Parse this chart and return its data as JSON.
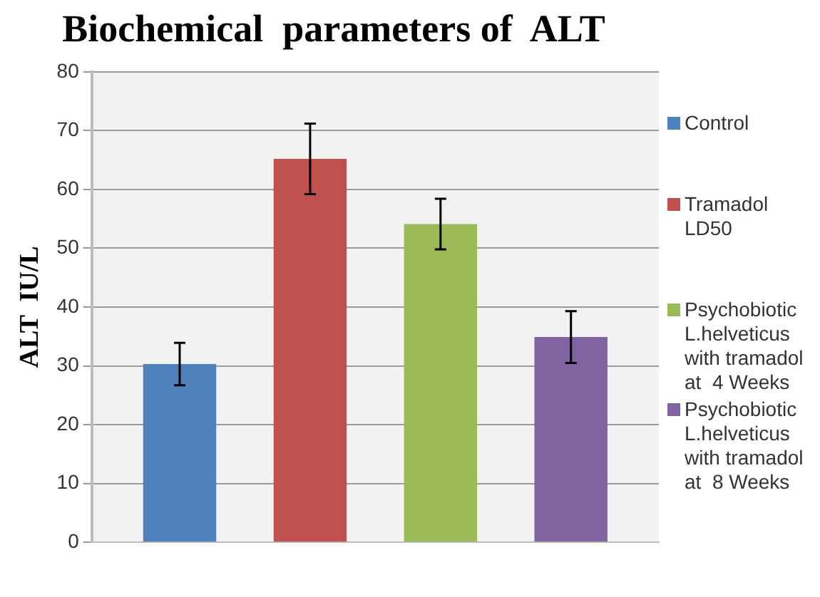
{
  "chart_data": {
    "type": "bar",
    "title": "Biochemical  parameters of  ALT",
    "ylabel": "ALT  IU/L",
    "categories": [
      null
    ],
    "series": [
      {
        "name": "Control",
        "color": "#4f81bd",
        "values": [
          30.3
        ],
        "errors": [
          3.6
        ]
      },
      {
        "name": "Tramadol LD50",
        "color": "#c0504d",
        "values": [
          65.2
        ],
        "errors": [
          6
        ]
      },
      {
        "name": "Psychobiotic L.helveticus with tramadol at  4 Weeks",
        "color": "#9bbb59",
        "values": [
          54.1
        ],
        "errors": [
          4.3
        ]
      },
      {
        "name": "Psychobiotic L.helveticus with tramadol at  8 Weeks",
        "color": "#8064a2",
        "values": [
          34.9
        ],
        "errors": [
          4.4
        ]
      }
    ],
    "ylim": [
      0,
      80
    ],
    "yticks": [
      0,
      10,
      20,
      30,
      40,
      50,
      60,
      70,
      80
    ],
    "grid": "y",
    "legend": "right"
  }
}
